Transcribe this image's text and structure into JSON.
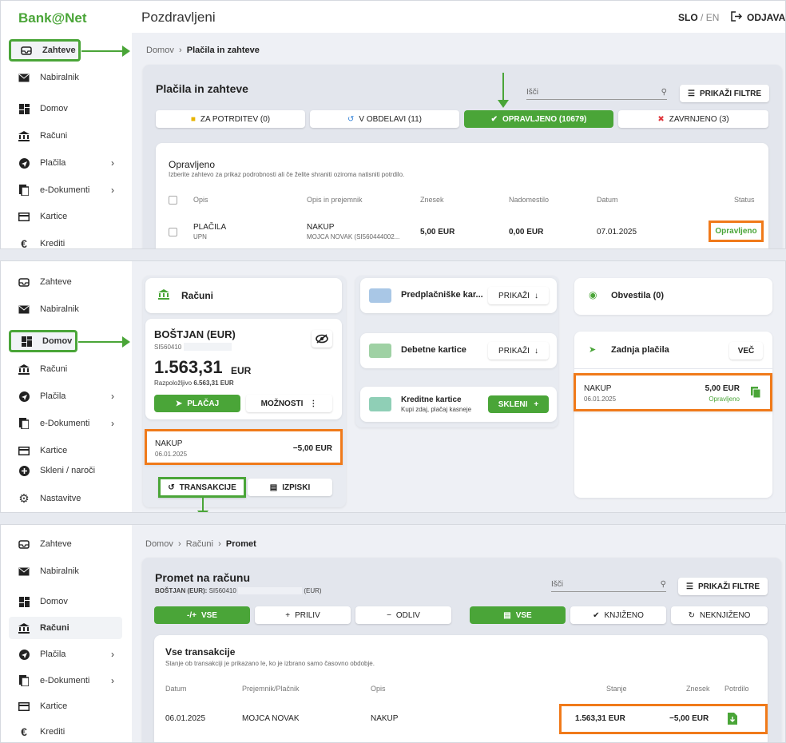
{
  "colors": {
    "accent": "#4aa538",
    "highlight": "#f07a1a"
  },
  "logo": "Bank@Net",
  "panel1": {
    "sidebar": [
      {
        "label": "Zahteve",
        "icon": "inbox-icon"
      },
      {
        "label": "Nabiralnik",
        "icon": "mail-icon"
      },
      {
        "label": "Domov",
        "icon": "dashboard-icon"
      },
      {
        "label": "Računi",
        "icon": "bank-icon"
      },
      {
        "label": "Plačila",
        "icon": "send-icon"
      },
      {
        "label": "e-Dokumenti",
        "icon": "document-icon"
      },
      {
        "label": "Kartice",
        "icon": "card-icon"
      },
      {
        "label": "Krediti",
        "icon": "euro-icon"
      }
    ],
    "header": {
      "greeting": "Pozdravljeni",
      "lang_active": "SLO",
      "lang_sep": " / ",
      "lang_other": "EN",
      "logout": "ODJAVA"
    },
    "breadcrumb": {
      "home": "Domov",
      "current": "Plačila in zahteve"
    },
    "title": "Plačila in zahteve",
    "search_placeholder": "Išči",
    "filter_button": "PRIKAŽI FILTRE",
    "tabs": [
      "ZA POTRDITEV (0)",
      "V OBDELAVI (11)",
      "OPRAVLJENO (10679)",
      "ZAVRNJENO (3)"
    ],
    "section_title": "Opravljeno",
    "section_sub": "Izberite zahtevo za prikaz podrobnosti ali če želite shraniti oziroma natisniti potrdilo.",
    "columns": [
      "Opis",
      "Opis in prejemnik",
      "Znesek",
      "Nadomestilo",
      "Datum",
      "Status"
    ],
    "row": {
      "opis": "PLAČILA",
      "opis_sub": "UPN",
      "prejemnik": "NAKUP",
      "prejemnik_sub": "MOJCA NOVAK (SI560444002...",
      "znesek": "5,00 EUR",
      "nadomestilo": "0,00 EUR",
      "datum": "07.01.2025",
      "status": "Opravljeno"
    }
  },
  "panel2": {
    "sidebar": [
      {
        "label": "Zahteve"
      },
      {
        "label": "Nabiralnik"
      },
      {
        "label": "Domov"
      },
      {
        "label": "Računi"
      },
      {
        "label": "Plačila"
      },
      {
        "label": "e-Dokumenti"
      },
      {
        "label": "Kartice"
      },
      {
        "label": "Skleni / naroči"
      },
      {
        "label": "Nastavitve"
      }
    ],
    "accounts_title": "Računi",
    "account_name": "BOŠTJAN (EUR)",
    "account_iban": "SI560410",
    "balance": "1.563,31",
    "currency": "EUR",
    "available_label": "Razpoložljivo",
    "available_value": "6.563,31 EUR",
    "pay_button": "PLAČAJ",
    "options_button": "MOŽNOSTI",
    "last_tx": {
      "title": "NAKUP",
      "date": "06.01.2025",
      "amount": "−5,00 EUR"
    },
    "transactions_button": "TRANSAKCIJE",
    "statements_button": "IZPISKI",
    "prepaid": "Predplačniške kar...",
    "debit": "Debetne kartice",
    "show": "PRIKAŽI",
    "credit_title": "Kreditne kartice",
    "credit_sub": "Kupi zdaj, plačaj kasneje",
    "conclude": "SKLENI",
    "notices": "Obvestila (0)",
    "last_payments": "Zadnja plačila",
    "more": "VEČ",
    "payment": {
      "title": "NAKUP",
      "date": "06.01.2025",
      "amount": "5,00 EUR",
      "status": "Opravljeno"
    }
  },
  "panel3": {
    "sidebar": [
      {
        "label": "Zahteve"
      },
      {
        "label": "Nabiralnik"
      },
      {
        "label": "Domov"
      },
      {
        "label": "Računi"
      },
      {
        "label": "Plačila"
      },
      {
        "label": "e-Dokumenti"
      },
      {
        "label": "Kartice"
      },
      {
        "label": "Krediti"
      }
    ],
    "breadcrumb": [
      "Domov",
      "Računi",
      "Promet"
    ],
    "title": "Promet na računu",
    "subtitle_bold": "BOŠTJAN (EUR):",
    "subtitle_iban": "SI560410",
    "subtitle_cur": "(EUR)",
    "search_placeholder": "Išči",
    "filter_button": "PRIKAŽI FILTRE",
    "tabs_left": [
      "VSE",
      "PRILIV",
      "ODLIV"
    ],
    "tabs_right": [
      "VSE",
      "KNJIŽENO",
      "NEKNJIŽENO"
    ],
    "section_title": "Vse transakcije",
    "section_sub": "Stanje ob transakciji je prikazano le, ko je izbrano samo časovno obdobje.",
    "columns": [
      "Datum",
      "Prejemnik/Plačnik",
      "Opis",
      "Stanje",
      "Znesek",
      "Potrdilo"
    ],
    "row": {
      "datum": "06.01.2025",
      "prejemnik": "MOJCA NOVAK",
      "opis": "NAKUP",
      "stanje": "1.563,31 EUR",
      "znesek": "−5,00 EUR"
    }
  }
}
